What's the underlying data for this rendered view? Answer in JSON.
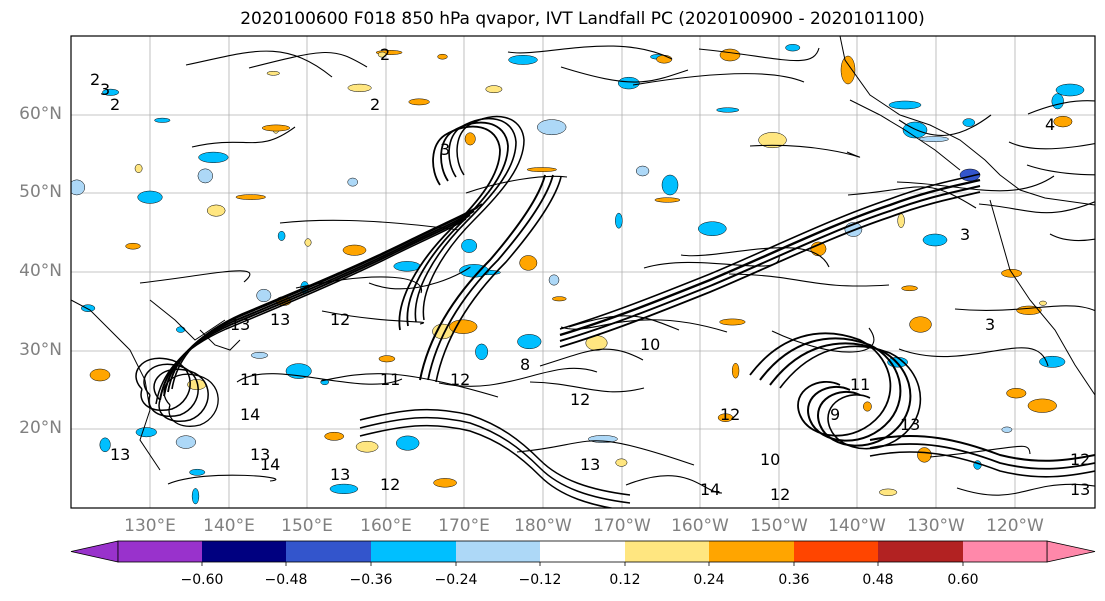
{
  "title": "2020100600 F018 850 hPa qvapor, IVT Landfall PC (2020100900 - 2020101100)",
  "lat_labels": [
    "60°N",
    "50°N",
    "40°N",
    "30°N",
    "20°N"
  ],
  "lon_labels": [
    "130°E",
    "140°E",
    "150°E",
    "160°E",
    "170°E",
    "180°W",
    "170°W",
    "160°W",
    "150°W",
    "140°W",
    "130°W",
    "120°W"
  ],
  "colorbar": {
    "colors": [
      "#9932cc",
      "#000080",
      "#3355cc",
      "#00bfff",
      "#add8f7",
      "#ffffff",
      "#ffe680",
      "#ffa500",
      "#ff4500",
      "#b22222",
      "#ff88aa"
    ],
    "tick_labels": [
      "−0.60",
      "−0.48",
      "−0.36",
      "−0.24",
      "−0.12",
      "0.12",
      "0.24",
      "0.36",
      "0.48",
      "0.60"
    ]
  },
  "contour_labels": [
    "2",
    "2",
    "3",
    "2",
    "3",
    "2",
    "12",
    "13",
    "11",
    "10",
    "12",
    "13",
    "8",
    "11",
    "13",
    "12",
    "12",
    "13",
    "14",
    "13",
    "12",
    "13",
    "12",
    "14",
    "14",
    "13",
    "11",
    "13",
    "12",
    "10",
    "9",
    "3",
    "4",
    "3"
  ],
  "shading_colors": {
    "orange": "#ffa500",
    "yellow": "#ffe680",
    "cyan": "#00bfff",
    "lightblue": "#add8f7",
    "blue": "#3355cc"
  }
}
